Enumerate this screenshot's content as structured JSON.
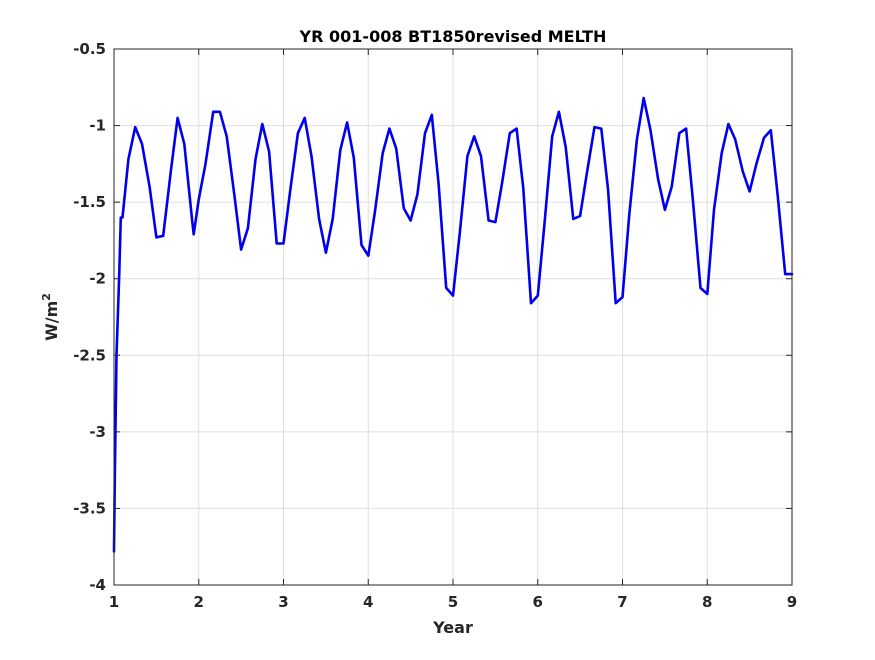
{
  "chart_data": {
    "type": "line",
    "title": "YR 001-008 BT1850revised MELTH",
    "xlabel": "Year",
    "ylabel_base": "W/m",
    "ylabel_sup": "2",
    "xlim": [
      1,
      9
    ],
    "ylim": [
      -4,
      -0.5
    ],
    "xticks": [
      1,
      2,
      3,
      4,
      5,
      6,
      7,
      8,
      9
    ],
    "yticks": [
      -4,
      -3.5,
      -3,
      -2.5,
      -2,
      -1.5,
      -1,
      -0.5
    ],
    "grid": true,
    "series": [
      {
        "color": "#0000ee",
        "x": [
          1.0,
          1.01,
          1.03,
          1.06,
          1.08,
          1.1,
          1.17,
          1.25,
          1.33,
          1.42,
          1.5,
          1.58,
          1.67,
          1.75,
          1.83,
          1.92,
          1.94,
          2.0,
          2.08,
          2.17,
          2.25,
          2.33,
          2.42,
          2.5,
          2.58,
          2.67,
          2.75,
          2.83,
          2.92,
          3.0,
          3.08,
          3.17,
          3.25,
          3.33,
          3.42,
          3.5,
          3.58,
          3.67,
          3.75,
          3.83,
          3.92,
          4.0,
          4.08,
          4.17,
          4.25,
          4.33,
          4.42,
          4.5,
          4.58,
          4.67,
          4.75,
          4.83,
          4.92,
          5.0,
          5.08,
          5.17,
          5.25,
          5.33,
          5.42,
          5.5,
          5.58,
          5.67,
          5.75,
          5.83,
          5.92,
          6.0,
          6.08,
          6.17,
          6.25,
          6.33,
          6.42,
          6.5,
          6.58,
          6.67,
          6.75,
          6.83,
          6.92,
          7.0,
          7.08,
          7.17,
          7.25,
          7.33,
          7.42,
          7.5,
          7.58,
          7.67,
          7.75,
          7.83,
          7.92,
          8.0,
          8.08,
          8.17,
          8.25,
          8.33,
          8.42,
          8.5,
          8.58,
          8.67,
          8.75,
          8.83,
          8.92,
          9.0
        ],
        "values": [
          -3.78,
          -3.3,
          -2.5,
          -2.0,
          -1.6,
          -1.6,
          -1.22,
          -1.01,
          -1.12,
          -1.4,
          -1.73,
          -1.72,
          -1.3,
          -0.95,
          -1.12,
          -1.61,
          -1.71,
          -1.48,
          -1.25,
          -0.91,
          -0.91,
          -1.07,
          -1.45,
          -1.81,
          -1.67,
          -1.22,
          -0.99,
          -1.17,
          -1.77,
          -1.77,
          -1.42,
          -1.05,
          -0.95,
          -1.2,
          -1.61,
          -1.83,
          -1.61,
          -1.16,
          -0.98,
          -1.21,
          -1.78,
          -1.85,
          -1.56,
          -1.18,
          -1.02,
          -1.15,
          -1.54,
          -1.62,
          -1.45,
          -1.05,
          -0.93,
          -1.38,
          -2.06,
          -2.11,
          -1.7,
          -1.2,
          -1.07,
          -1.2,
          -1.62,
          -1.63,
          -1.37,
          -1.05,
          -1.02,
          -1.41,
          -2.16,
          -2.11,
          -1.64,
          -1.07,
          -0.91,
          -1.14,
          -1.61,
          -1.59,
          -1.31,
          -1.01,
          -1.02,
          -1.42,
          -2.16,
          -2.12,
          -1.58,
          -1.09,
          -0.82,
          -1.03,
          -1.35,
          -1.55,
          -1.4,
          -1.05,
          -1.02,
          -1.48,
          -2.06,
          -2.1,
          -1.55,
          -1.18,
          -0.99,
          -1.09,
          -1.3,
          -1.43,
          -1.25,
          -1.08,
          -1.03,
          -1.45,
          -1.97,
          -1.97
        ]
      }
    ]
  }
}
